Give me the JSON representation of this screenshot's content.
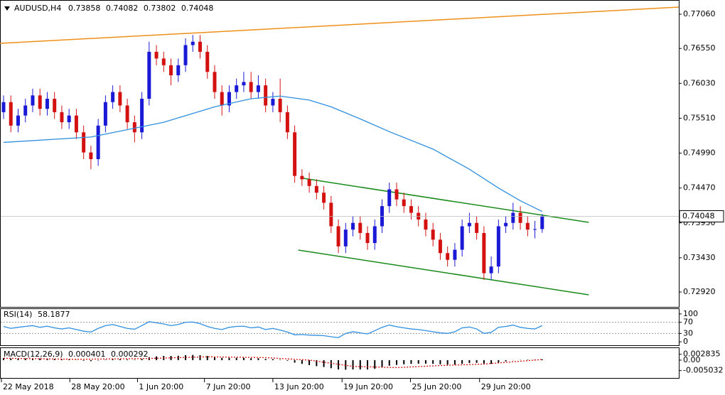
{
  "chart_data": {
    "type": "candlestick",
    "symbol": "AUDUSD,H4",
    "up_color": "#1a1ad6",
    "down_color": "#d41111",
    "xlim": [
      -0.49,
      92.77
    ],
    "ylim": [
      0.72698,
      0.77272
    ],
    "xticks": [
      {
        "value": -0.3,
        "label": "22 May 2018"
      },
      {
        "value": 9.1,
        "label": "28 May 20:00"
      },
      {
        "value": 18.4,
        "label": "1 Jun 20:00"
      },
      {
        "value": 27.6,
        "label": "7 Jun 20:00"
      },
      {
        "value": 37.0,
        "label": "13 Jun 20:00"
      },
      {
        "value": 46.5,
        "label": "19 Jun 20:00"
      },
      {
        "value": 55.9,
        "label": "25 Jun 20:00"
      },
      {
        "value": 65.4,
        "label": "29 Jun 20:00"
      }
    ],
    "yticks": [
      {
        "value": 0.7706,
        "label": "0.77060"
      },
      {
        "value": 0.7655,
        "label": "0.76550"
      },
      {
        "value": 0.7603,
        "label": "0.76030"
      },
      {
        "value": 0.7551,
        "label": "0.75510"
      },
      {
        "value": 0.7499,
        "label": "0.74990"
      },
      {
        "value": 0.7447,
        "label": "0.74470"
      },
      {
        "value": 0.7395,
        "label": "0.73950"
      },
      {
        "value": 0.7343,
        "label": "0.73430"
      },
      {
        "value": 0.7292,
        "label": "0.72920"
      }
    ],
    "candles": {
      "open": [
        0.756,
        0.7575,
        0.754,
        0.7555,
        0.757,
        0.7585,
        0.7565,
        0.758,
        0.756,
        0.7545,
        0.7555,
        0.753,
        0.75,
        0.749,
        0.754,
        0.7575,
        0.759,
        0.757,
        0.7545,
        0.753,
        0.758,
        0.765,
        0.764,
        0.763,
        0.7615,
        0.763,
        0.766,
        0.7665,
        0.765,
        0.762,
        0.759,
        0.757,
        0.759,
        0.76,
        0.7605,
        0.759,
        0.76,
        0.757,
        0.758,
        0.756,
        0.753,
        0.7465,
        0.746,
        0.745,
        0.744,
        0.7425,
        0.739,
        0.736,
        0.7385,
        0.7395,
        0.738,
        0.7365,
        0.739,
        0.742,
        0.7445,
        0.743,
        0.742,
        0.741,
        0.74,
        0.7385,
        0.737,
        0.735,
        0.734,
        0.7355,
        0.739,
        0.7395,
        0.738,
        0.732,
        0.733,
        0.739,
        0.7395,
        0.741,
        0.7395,
        0.7385,
        0.73858
      ],
      "high": [
        0.7585,
        0.7585,
        0.7565,
        0.758,
        0.7595,
        0.7595,
        0.759,
        0.759,
        0.757,
        0.7565,
        0.7565,
        0.754,
        0.751,
        0.755,
        0.7585,
        0.76,
        0.76,
        0.758,
        0.7555,
        0.759,
        0.7665,
        0.766,
        0.765,
        0.764,
        0.764,
        0.767,
        0.7675,
        0.7675,
        0.766,
        0.763,
        0.76,
        0.76,
        0.761,
        0.762,
        0.762,
        0.7615,
        0.761,
        0.759,
        0.761,
        0.757,
        0.754,
        0.7475,
        0.747,
        0.746,
        0.745,
        0.7435,
        0.74,
        0.7395,
        0.7405,
        0.7405,
        0.739,
        0.74,
        0.743,
        0.7455,
        0.7455,
        0.744,
        0.743,
        0.742,
        0.741,
        0.7395,
        0.738,
        0.736,
        0.7365,
        0.74,
        0.741,
        0.7405,
        0.739,
        0.7345,
        0.74,
        0.7405,
        0.7425,
        0.742,
        0.7405,
        0.7398,
        0.74082
      ],
      "low": [
        0.755,
        0.753,
        0.753,
        0.7545,
        0.756,
        0.7555,
        0.7555,
        0.755,
        0.7535,
        0.7535,
        0.752,
        0.749,
        0.7475,
        0.748,
        0.753,
        0.7565,
        0.756,
        0.7535,
        0.7515,
        0.752,
        0.757,
        0.763,
        0.762,
        0.76,
        0.7605,
        0.762,
        0.765,
        0.764,
        0.761,
        0.758,
        0.7555,
        0.756,
        0.758,
        0.759,
        0.758,
        0.758,
        0.756,
        0.756,
        0.7545,
        0.752,
        0.7455,
        0.745,
        0.744,
        0.743,
        0.7415,
        0.738,
        0.735,
        0.735,
        0.7375,
        0.737,
        0.7355,
        0.7355,
        0.738,
        0.741,
        0.742,
        0.741,
        0.74,
        0.739,
        0.7375,
        0.736,
        0.734,
        0.733,
        0.733,
        0.7345,
        0.738,
        0.737,
        0.731,
        0.731,
        0.732,
        0.738,
        0.7385,
        0.7385,
        0.7375,
        0.7372,
        0.73802
      ],
      "close": [
        0.7575,
        0.754,
        0.7555,
        0.757,
        0.7585,
        0.7565,
        0.758,
        0.756,
        0.7545,
        0.7555,
        0.753,
        0.75,
        0.749,
        0.754,
        0.7575,
        0.759,
        0.757,
        0.7545,
        0.753,
        0.758,
        0.765,
        0.764,
        0.763,
        0.7615,
        0.763,
        0.766,
        0.7665,
        0.765,
        0.762,
        0.759,
        0.757,
        0.759,
        0.76,
        0.7605,
        0.759,
        0.76,
        0.757,
        0.758,
        0.756,
        0.753,
        0.7465,
        0.746,
        0.745,
        0.744,
        0.7425,
        0.739,
        0.736,
        0.7385,
        0.7395,
        0.738,
        0.7365,
        0.739,
        0.742,
        0.7445,
        0.743,
        0.742,
        0.741,
        0.74,
        0.7385,
        0.737,
        0.735,
        0.734,
        0.7355,
        0.739,
        0.7395,
        0.738,
        0.732,
        0.733,
        0.739,
        0.7395,
        0.741,
        0.7395,
        0.7385,
        0.73858,
        0.74048
      ]
    },
    "ma": {
      "color": "#2f8fe0",
      "x": [
        0,
        12,
        22,
        29,
        34,
        38,
        42,
        45,
        49,
        53,
        59,
        64,
        68,
        71,
        74
      ],
      "values": [
        0.7515,
        0.7523,
        0.7545,
        0.7568,
        0.758,
        0.7584,
        0.7578,
        0.7568,
        0.755,
        0.7531,
        0.7505,
        0.7475,
        0.7447,
        0.7428,
        0.7412
      ]
    },
    "lines": [
      {
        "color": "#f0901a",
        "x": [
          -0.49,
          92.77
        ],
        "y": [
          0.76626,
          0.77166
        ]
      },
      {
        "color": "#1a8a1a",
        "x": [
          41.2,
          80.4
        ],
        "y": [
          0.74614,
          0.73958
        ]
      },
      {
        "color": "#1a8a1a",
        "x": [
          40.5,
          80.4
        ],
        "y": [
          0.73545,
          0.72878
        ]
      }
    ],
    "rsi": {
      "title": "RSI(14)",
      "color": "#2f8fe0",
      "ylim": [
        -12.5,
        117.5
      ],
      "yticks": [
        100,
        70,
        30,
        0
      ],
      "values": [
        55,
        48,
        52,
        55,
        58,
        52,
        56,
        50,
        46,
        50,
        44,
        38,
        35,
        48,
        58,
        62,
        55,
        48,
        45,
        58,
        72,
        68,
        64,
        58,
        62,
        70,
        71,
        65,
        55,
        48,
        44,
        52,
        55,
        56,
        50,
        53,
        44,
        48,
        42,
        35,
        25,
        26,
        24,
        23,
        22,
        18,
        15,
        30,
        36,
        32,
        28,
        40,
        52,
        60,
        54,
        50,
        46,
        44,
        40,
        36,
        32,
        30,
        36,
        50,
        53,
        46,
        30,
        34,
        52,
        55,
        60,
        52,
        48,
        46,
        58.1877
      ]
    },
    "macd": {
      "title": "MACD(12,26,9)",
      "ylim": [
        -0.00857,
        0.00578
      ],
      "yticks": [
        0.002835,
        {
          "value": 0,
          "label": "0.00"
        },
        -0.005032
      ],
      "signal_color": "#d41111",
      "values": [
        0.001,
        0.0008,
        0.0007,
        0.0008,
        0.0009,
        0.0008,
        0.0008,
        0.0006,
        0.0004,
        0.0003,
        0.0001,
        -0.0003,
        -0.0005,
        -0.0002,
        0.0002,
        0.0005,
        0.0005,
        0.0003,
        0.0002,
        0.0006,
        0.0014,
        0.0018,
        0.002,
        0.002,
        0.0021,
        0.0024,
        0.0025,
        0.0024,
        0.002,
        0.0015,
        0.0011,
        0.0011,
        0.0011,
        0.0011,
        0.0009,
        0.0009,
        0.0006,
        0.0005,
        0.0002,
        -0.0003,
        -0.0012,
        -0.0018,
        -0.0024,
        -0.0029,
        -0.0033,
        -0.0039,
        -0.0045,
        -0.0046,
        -0.0045,
        -0.0045,
        -0.0045,
        -0.0042,
        -0.0035,
        -0.0027,
        -0.0023,
        -0.002,
        -0.0018,
        -0.0017,
        -0.0017,
        -0.0018,
        -0.002,
        -0.0022,
        -0.0022,
        -0.0018,
        -0.0014,
        -0.0013,
        -0.0017,
        -0.0018,
        -0.0012,
        -0.0006,
        -0.0001,
        0.0001,
        0.0002,
        0.0003,
        0.000401
      ],
      "signal": {
        "x": [
          0,
          10,
          20,
          28,
          36,
          42,
          48,
          54,
          60,
          66,
          70,
          74
        ],
        "values": [
          0.0009,
          0.0004,
          0.0008,
          0.0016,
          0.0012,
          0.0,
          -0.003,
          -0.0036,
          -0.0026,
          -0.0019,
          -0.0008,
          0.000292
        ]
      }
    }
  }
}
